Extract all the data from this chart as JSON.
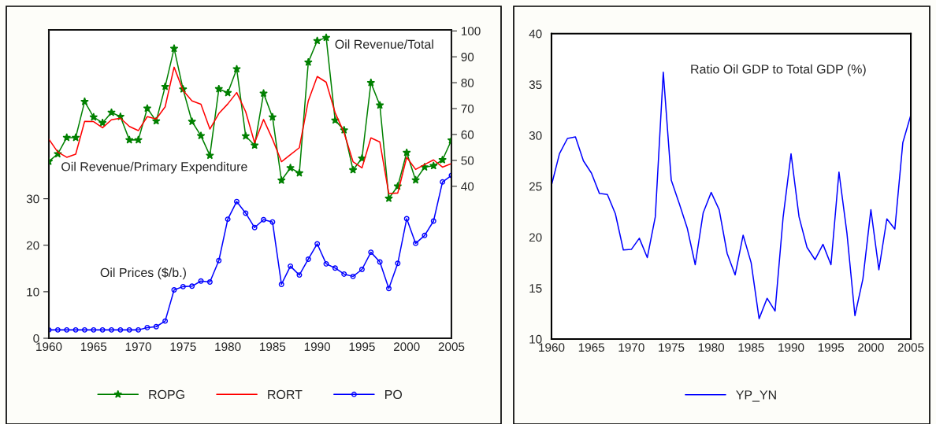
{
  "chart_data": [
    {
      "type": "line",
      "x": [
        1960,
        1961,
        1962,
        1963,
        1964,
        1965,
        1966,
        1967,
        1968,
        1969,
        1970,
        1971,
        1972,
        1973,
        1974,
        1975,
        1976,
        1977,
        1978,
        1979,
        1980,
        1981,
        1982,
        1983,
        1984,
        1985,
        1986,
        1987,
        1988,
        1989,
        1990,
        1991,
        1992,
        1993,
        1994,
        1995,
        1996,
        1997,
        1998,
        1999,
        2000,
        2001,
        2002,
        2003,
        2004,
        2005
      ],
      "series": [
        {
          "name": "ROPG",
          "color": "#008000",
          "axis": "y2",
          "marker": "star",
          "values": [
            49.6,
            52.5,
            58.8,
            58.8,
            72.7,
            66.7,
            64.5,
            68.5,
            66.9,
            57.9,
            57.9,
            70.1,
            65.2,
            78.5,
            93.2,
            77.5,
            65.0,
            59.5,
            51.9,
            77.6,
            76.1,
            85.3,
            59.4,
            55.8,
            75.9,
            66.7,
            42.3,
            47.1,
            45.1,
            87.9,
            96.2,
            97.4,
            65.5,
            61.7,
            46.3,
            50.8,
            80.0,
            71.3,
            35.3,
            40.0,
            53.0,
            42.4,
            47.4,
            47.9,
            50.2,
            57.8
          ]
        },
        {
          "name": "RORT",
          "color": "#ff0000",
          "axis": "y2",
          "marker": "none",
          "values": [
            58.2,
            53.2,
            51.2,
            52.4,
            65.1,
            65.0,
            62.6,
            65.7,
            66.3,
            63.1,
            61.5,
            66.9,
            66.0,
            70.7,
            86.0,
            77.0,
            73.0,
            71.7,
            62.1,
            68.1,
            71.8,
            76.2,
            68.8,
            56.8,
            65.8,
            58.2,
            49.5,
            52.2,
            54.9,
            73.0,
            82.4,
            80.2,
            68.4,
            60.7,
            49.5,
            47.1,
            58.7,
            57.1,
            37.2,
            37.4,
            51.2,
            46.5,
            48.4,
            50.2,
            47.4,
            48.8
          ]
        },
        {
          "name": "PO",
          "color": "#0000ff",
          "axis": "y",
          "marker": "circle",
          "values": [
            1.8,
            1.8,
            1.8,
            1.8,
            1.8,
            1.8,
            1.8,
            1.8,
            1.8,
            1.8,
            1.8,
            2.3,
            2.5,
            3.7,
            10.4,
            11.1,
            11.2,
            12.3,
            12.1,
            16.7,
            25.6,
            29.4,
            26.9,
            23.8,
            25.5,
            25.0,
            11.6,
            15.5,
            13.6,
            17.0,
            20.3,
            16.0,
            15.1,
            13.8,
            13.3,
            14.8,
            18.5,
            16.4,
            10.7,
            16.1,
            25.7,
            20.4,
            22.1,
            25.2,
            33.6,
            35.0
          ]
        }
      ],
      "xlim": [
        1960,
        2005
      ],
      "xticks": [
        1960,
        1965,
        1970,
        1975,
        1980,
        1985,
        1990,
        1995,
        2000,
        2005
      ],
      "ylim": [
        0,
        66.3
      ],
      "yticks": [
        0,
        10,
        20,
        30
      ],
      "y2lim": [
        -18.7,
        100.4
      ],
      "y2ticks": [
        40,
        50,
        60,
        70,
        80,
        90,
        100
      ],
      "annotations": [
        "Oil Revenue/Total",
        "Oil Revenue/Primary Expenditure",
        "Oil Prices ($/b.)"
      ],
      "grid": false,
      "legend": "bottom"
    },
    {
      "type": "line",
      "x": [
        1960,
        1961,
        1962,
        1963,
        1964,
        1965,
        1966,
        1967,
        1968,
        1969,
        1970,
        1971,
        1972,
        1973,
        1974,
        1975,
        1976,
        1977,
        1978,
        1979,
        1980,
        1981,
        1982,
        1983,
        1984,
        1985,
        1986,
        1987,
        1988,
        1989,
        1990,
        1991,
        1992,
        1993,
        1994,
        1995,
        1996,
        1997,
        1998,
        1999,
        2000,
        2001,
        2002,
        2003,
        2004,
        2005
      ],
      "series": [
        {
          "name": "YP_YN",
          "color": "#0000ff",
          "marker": "none",
          "values": [
            25.1,
            28.2,
            29.7,
            29.85,
            27.5,
            26.3,
            24.3,
            24.2,
            22.3,
            18.75,
            18.8,
            19.9,
            18.0,
            22.0,
            36.2,
            25.6,
            23.3,
            20.9,
            17.3,
            22.4,
            24.4,
            22.7,
            18.4,
            16.3,
            20.2,
            17.5,
            12.0,
            14.0,
            12.75,
            21.9,
            28.2,
            22.0,
            19.0,
            17.8,
            19.3,
            17.3,
            26.4,
            20.4,
            12.3,
            15.9,
            22.7,
            16.8,
            21.8,
            20.8,
            29.3,
            32.0
          ]
        }
      ],
      "xlim": [
        1960,
        2005
      ],
      "xticks": [
        1960,
        1965,
        1970,
        1975,
        1980,
        1985,
        1990,
        1995,
        2000,
        2005
      ],
      "ylim": [
        10,
        40
      ],
      "yticks": [
        10,
        15,
        20,
        25,
        30,
        35,
        40
      ],
      "annotations": [
        "Ratio Oil GDP to Total GDP (%)"
      ],
      "grid": false,
      "legend": "bottom"
    }
  ]
}
